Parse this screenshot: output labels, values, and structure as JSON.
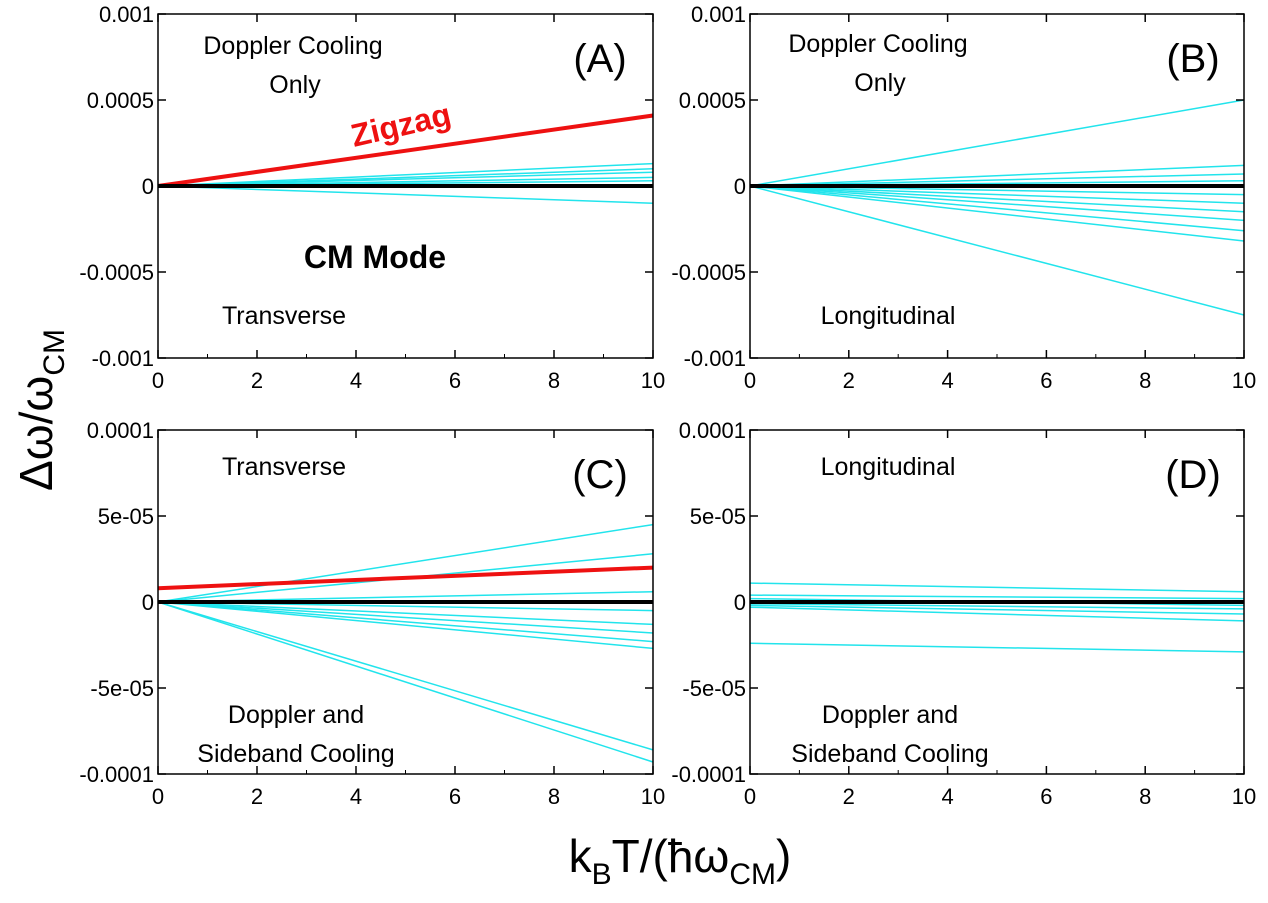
{
  "figure": {
    "ylabel_main": "Δω/ω",
    "ylabel_sub": "CM",
    "xlabel_main_a": "k",
    "xlabel_sub_a": "B",
    "xlabel_main_b": "T/(ħω",
    "xlabel_sub_b": "CM",
    "xlabel_main_c": ")"
  },
  "colors": {
    "cyan": "#22e4ec",
    "red": "#ee1111",
    "black": "#000000"
  },
  "chart_data": [
    {
      "id": "A",
      "type": "line",
      "panel_label": "(A)",
      "xlim": [
        0,
        10
      ],
      "ylim": [
        -0.001,
        0.001
      ],
      "xticks": [
        0,
        2,
        4,
        6,
        8,
        10
      ],
      "yticks": [
        -0.001,
        -0.0005,
        0,
        0.0005,
        0.001
      ],
      "ytick_labels": [
        "-0.001",
        "-0.0005",
        "0",
        "0.0005",
        "0.001"
      ],
      "annotations": {
        "cooling_line1": "Doppler Cooling",
        "cooling_line2": "Only",
        "direction": "Transverse",
        "zigzag": "Zigzag",
        "cm_mode": "CM Mode"
      },
      "series": [
        {
          "name": "cyan",
          "color": "cyan",
          "width": 1.5,
          "x": [
            0,
            10
          ],
          "y": [
            0,
            0.00013
          ]
        },
        {
          "name": "cyan",
          "color": "cyan",
          "width": 1.5,
          "x": [
            0,
            10
          ],
          "y": [
            0,
            0.0001
          ]
        },
        {
          "name": "cyan",
          "color": "cyan",
          "width": 1.5,
          "x": [
            0,
            10
          ],
          "y": [
            0,
            8e-05
          ]
        },
        {
          "name": "cyan",
          "color": "cyan",
          "width": 1.5,
          "x": [
            0,
            10
          ],
          "y": [
            0,
            5e-05
          ]
        },
        {
          "name": "cyan",
          "color": "cyan",
          "width": 1.5,
          "x": [
            0,
            10
          ],
          "y": [
            0,
            3e-05
          ]
        },
        {
          "name": "cyan",
          "color": "cyan",
          "width": 1.5,
          "x": [
            0,
            10
          ],
          "y": [
            0,
            -0.0001
          ]
        },
        {
          "name": "Zigzag",
          "color": "red",
          "width": 4,
          "x": [
            0,
            10
          ],
          "y": [
            0,
            0.00041
          ]
        },
        {
          "name": "CM Mode",
          "color": "black",
          "width": 4,
          "x": [
            0,
            10
          ],
          "y": [
            0,
            0
          ]
        }
      ]
    },
    {
      "id": "B",
      "type": "line",
      "panel_label": "(B)",
      "xlim": [
        0,
        10
      ],
      "ylim": [
        -0.001,
        0.001
      ],
      "xticks": [
        0,
        2,
        4,
        6,
        8,
        10
      ],
      "yticks": [
        -0.001,
        -0.0005,
        0,
        0.0005,
        0.001
      ],
      "ytick_labels": [
        "-0.001",
        "-0.0005",
        "0",
        "0.0005",
        "0.001"
      ],
      "annotations": {
        "cooling_line1": "Doppler Cooling",
        "cooling_line2": "Only",
        "direction": "Longitudinal"
      },
      "series": [
        {
          "name": "cyan",
          "color": "cyan",
          "width": 1.5,
          "x": [
            0,
            10
          ],
          "y": [
            0,
            0.0005
          ]
        },
        {
          "name": "cyan",
          "color": "cyan",
          "width": 1.5,
          "x": [
            0,
            10
          ],
          "y": [
            0,
            0.00012
          ]
        },
        {
          "name": "cyan",
          "color": "cyan",
          "width": 1.5,
          "x": [
            0,
            10
          ],
          "y": [
            0,
            7e-05
          ]
        },
        {
          "name": "cyan",
          "color": "cyan",
          "width": 1.5,
          "x": [
            0,
            10
          ],
          "y": [
            0,
            3e-05
          ]
        },
        {
          "name": "cyan",
          "color": "cyan",
          "width": 1.5,
          "x": [
            0,
            10
          ],
          "y": [
            0,
            -5e-05
          ]
        },
        {
          "name": "cyan",
          "color": "cyan",
          "width": 1.5,
          "x": [
            0,
            10
          ],
          "y": [
            0,
            -0.0001
          ]
        },
        {
          "name": "cyan",
          "color": "cyan",
          "width": 1.5,
          "x": [
            0,
            10
          ],
          "y": [
            0,
            -0.00015
          ]
        },
        {
          "name": "cyan",
          "color": "cyan",
          "width": 1.5,
          "x": [
            0,
            10
          ],
          "y": [
            0,
            -0.0002
          ]
        },
        {
          "name": "cyan",
          "color": "cyan",
          "width": 1.5,
          "x": [
            0,
            10
          ],
          "y": [
            0,
            -0.00026
          ]
        },
        {
          "name": "cyan",
          "color": "cyan",
          "width": 1.5,
          "x": [
            0,
            10
          ],
          "y": [
            0,
            -0.00032
          ]
        },
        {
          "name": "cyan",
          "color": "cyan",
          "width": 1.5,
          "x": [
            0,
            10
          ],
          "y": [
            0,
            -0.00075
          ]
        },
        {
          "name": "CM Mode",
          "color": "black",
          "width": 4,
          "x": [
            0,
            10
          ],
          "y": [
            0,
            0
          ]
        }
      ]
    },
    {
      "id": "C",
      "type": "line",
      "panel_label": "(C)",
      "xlim": [
        0,
        10
      ],
      "ylim": [
        -0.0001,
        0.0001
      ],
      "xticks": [
        0,
        2,
        4,
        6,
        8,
        10
      ],
      "yticks": [
        -0.0001,
        -5e-05,
        0,
        5e-05,
        0.0001
      ],
      "ytick_labels": [
        "-0.0001",
        "-5e-05",
        "0",
        "5e-05",
        "0.0001"
      ],
      "annotations": {
        "direction": "Transverse",
        "cooling_line1": "Doppler and",
        "cooling_line2": "Sideband Cooling"
      },
      "series": [
        {
          "name": "cyan",
          "color": "cyan",
          "width": 1.5,
          "x": [
            0,
            10
          ],
          "y": [
            0,
            4.5e-05
          ]
        },
        {
          "name": "cyan",
          "color": "cyan",
          "width": 1.5,
          "x": [
            0,
            10
          ],
          "y": [
            0,
            2.8e-05
          ]
        },
        {
          "name": "cyan",
          "color": "cyan",
          "width": 1.5,
          "x": [
            0,
            10
          ],
          "y": [
            0,
            6e-06
          ]
        },
        {
          "name": "cyan",
          "color": "cyan",
          "width": 1.5,
          "x": [
            0,
            10
          ],
          "y": [
            0,
            -5e-06
          ]
        },
        {
          "name": "cyan",
          "color": "cyan",
          "width": 1.5,
          "x": [
            0,
            10
          ],
          "y": [
            0,
            -1.3e-05
          ]
        },
        {
          "name": "cyan",
          "color": "cyan",
          "width": 1.5,
          "x": [
            0,
            10
          ],
          "y": [
            0,
            -1.8e-05
          ]
        },
        {
          "name": "cyan",
          "color": "cyan",
          "width": 1.5,
          "x": [
            0,
            10
          ],
          "y": [
            0,
            -2.3e-05
          ]
        },
        {
          "name": "cyan",
          "color": "cyan",
          "width": 1.5,
          "x": [
            0,
            10
          ],
          "y": [
            0,
            -2.7e-05
          ]
        },
        {
          "name": "cyan",
          "color": "cyan",
          "width": 1.5,
          "x": [
            0,
            10
          ],
          "y": [
            0,
            -8.6e-05
          ]
        },
        {
          "name": "cyan",
          "color": "cyan",
          "width": 1.5,
          "x": [
            0,
            10
          ],
          "y": [
            0,
            -9.3e-05
          ]
        },
        {
          "name": "Zigzag",
          "color": "red",
          "width": 4,
          "x": [
            0,
            10
          ],
          "y": [
            8e-06,
            2e-05
          ]
        },
        {
          "name": "CM Mode",
          "color": "black",
          "width": 4,
          "x": [
            0,
            10
          ],
          "y": [
            0,
            0
          ]
        }
      ]
    },
    {
      "id": "D",
      "type": "line",
      "panel_label": "(D)",
      "xlim": [
        0,
        10
      ],
      "ylim": [
        -0.0001,
        0.0001
      ],
      "xticks": [
        0,
        2,
        4,
        6,
        8,
        10
      ],
      "yticks": [
        -0.0001,
        -5e-05,
        0,
        5e-05,
        0.0001
      ],
      "ytick_labels": [
        "-0.0001",
        "-5e-05",
        "0",
        "5e-05",
        "0.0001"
      ],
      "annotations": {
        "direction": "Longitudinal",
        "cooling_line1": "Doppler and",
        "cooling_line2": "Sideband Cooling"
      },
      "series": [
        {
          "name": "cyan",
          "color": "cyan",
          "width": 1.5,
          "x": [
            0,
            10
          ],
          "y": [
            1.1e-05,
            6e-06
          ]
        },
        {
          "name": "cyan",
          "color": "cyan",
          "width": 1.5,
          "x": [
            0,
            10
          ],
          "y": [
            4e-06,
            2e-06
          ]
        },
        {
          "name": "cyan",
          "color": "cyan",
          "width": 1.5,
          "x": [
            0,
            10
          ],
          "y": [
            2e-06,
            -2e-06
          ]
        },
        {
          "name": "cyan",
          "color": "cyan",
          "width": 1.5,
          "x": [
            0,
            10
          ],
          "y": [
            -1e-06,
            -4e-06
          ]
        },
        {
          "name": "cyan",
          "color": "cyan",
          "width": 1.5,
          "x": [
            0,
            10
          ],
          "y": [
            -2e-06,
            -7e-06
          ]
        },
        {
          "name": "cyan",
          "color": "cyan",
          "width": 1.5,
          "x": [
            0,
            10
          ],
          "y": [
            -3e-06,
            -1.1e-05
          ]
        },
        {
          "name": "cyan",
          "color": "cyan",
          "width": 1.5,
          "x": [
            0,
            10
          ],
          "y": [
            -2.4e-05,
            -2.9e-05
          ]
        },
        {
          "name": "CM Mode",
          "color": "black",
          "width": 4,
          "x": [
            0,
            10
          ],
          "y": [
            0,
            0
          ]
        }
      ]
    }
  ]
}
